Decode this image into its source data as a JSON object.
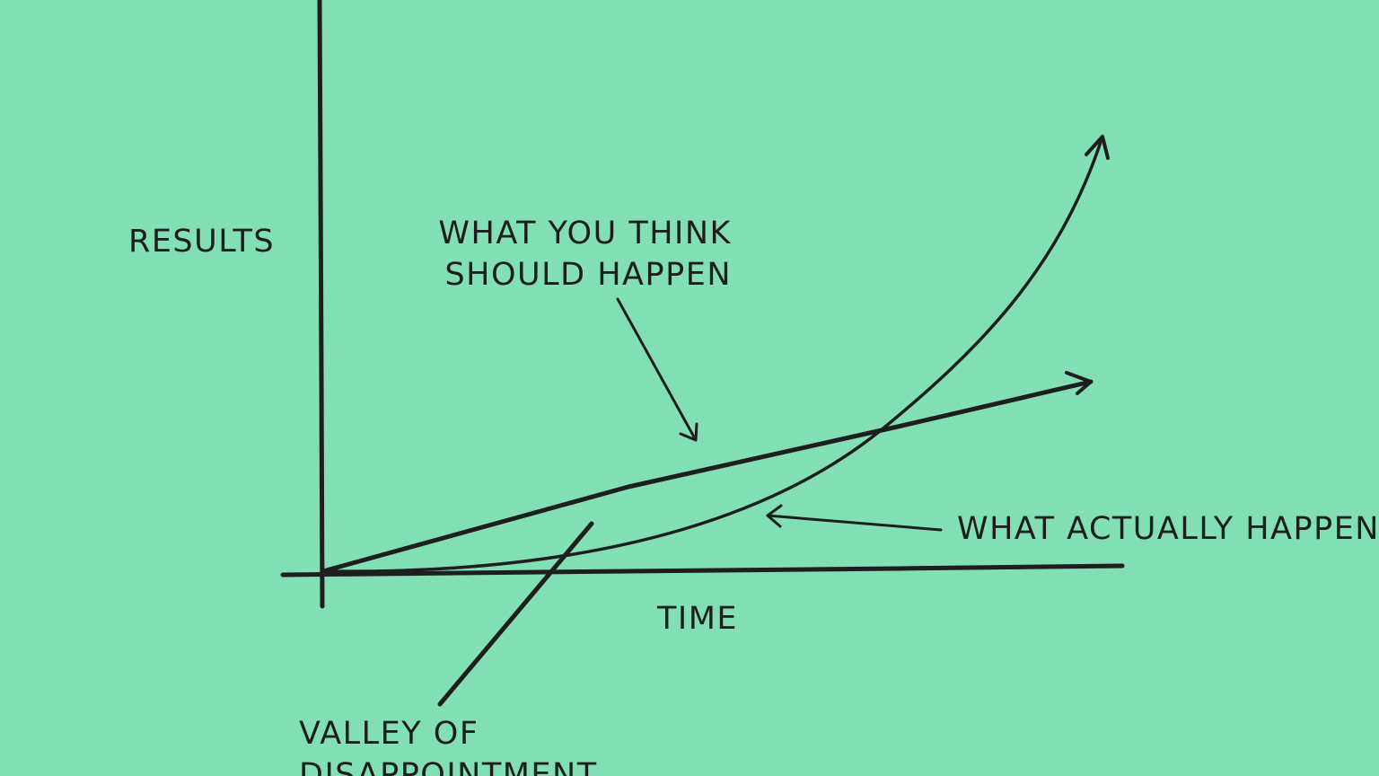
{
  "colors": {
    "background": "#7fe2b5",
    "ink": "#1e1e1e"
  },
  "labels": {
    "y_axis": "RESULTS",
    "x_axis": "TIME",
    "expected": [
      "WHAT YOU THINK",
      "SHOULD HAPPEN"
    ],
    "actual": "WHAT ACTUALLY HAPPENS",
    "valley": [
      "VALLEY OF",
      "DISAPPOINTMENT"
    ]
  }
}
